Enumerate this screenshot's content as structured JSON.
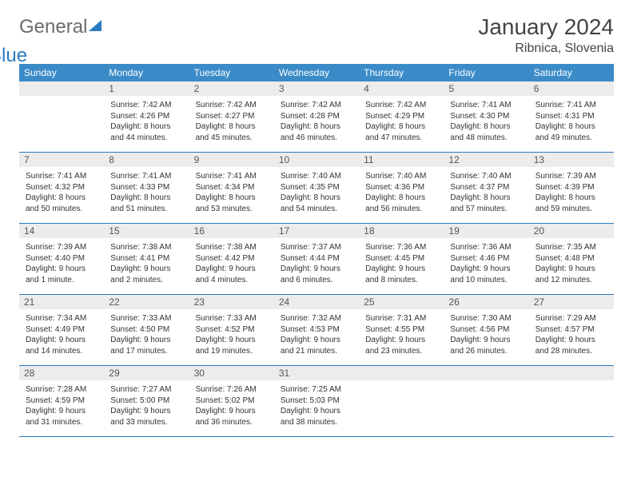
{
  "logo": {
    "part1": "General",
    "part2": "Blue"
  },
  "title": "January 2024",
  "location": "Ribnica, Slovenia",
  "weekdays": [
    "Sunday",
    "Monday",
    "Tuesday",
    "Wednesday",
    "Thursday",
    "Friday",
    "Saturday"
  ],
  "colors": {
    "header_bg": "#3b8bc8",
    "header_text": "#ffffff",
    "daynum_bg": "#ececec",
    "rule": "#2a7abf",
    "logo_gray": "#6b6b6b",
    "logo_blue": "#2a7abf"
  },
  "weeks": [
    [
      {
        "n": "",
        "sunrise": "",
        "sunset": "",
        "daylight": ""
      },
      {
        "n": "1",
        "sunrise": "Sunrise: 7:42 AM",
        "sunset": "Sunset: 4:26 PM",
        "daylight": "Daylight: 8 hours and 44 minutes."
      },
      {
        "n": "2",
        "sunrise": "Sunrise: 7:42 AM",
        "sunset": "Sunset: 4:27 PM",
        "daylight": "Daylight: 8 hours and 45 minutes."
      },
      {
        "n": "3",
        "sunrise": "Sunrise: 7:42 AM",
        "sunset": "Sunset: 4:28 PM",
        "daylight": "Daylight: 8 hours and 46 minutes."
      },
      {
        "n": "4",
        "sunrise": "Sunrise: 7:42 AM",
        "sunset": "Sunset: 4:29 PM",
        "daylight": "Daylight: 8 hours and 47 minutes."
      },
      {
        "n": "5",
        "sunrise": "Sunrise: 7:41 AM",
        "sunset": "Sunset: 4:30 PM",
        "daylight": "Daylight: 8 hours and 48 minutes."
      },
      {
        "n": "6",
        "sunrise": "Sunrise: 7:41 AM",
        "sunset": "Sunset: 4:31 PM",
        "daylight": "Daylight: 8 hours and 49 minutes."
      }
    ],
    [
      {
        "n": "7",
        "sunrise": "Sunrise: 7:41 AM",
        "sunset": "Sunset: 4:32 PM",
        "daylight": "Daylight: 8 hours and 50 minutes."
      },
      {
        "n": "8",
        "sunrise": "Sunrise: 7:41 AM",
        "sunset": "Sunset: 4:33 PM",
        "daylight": "Daylight: 8 hours and 51 minutes."
      },
      {
        "n": "9",
        "sunrise": "Sunrise: 7:41 AM",
        "sunset": "Sunset: 4:34 PM",
        "daylight": "Daylight: 8 hours and 53 minutes."
      },
      {
        "n": "10",
        "sunrise": "Sunrise: 7:40 AM",
        "sunset": "Sunset: 4:35 PM",
        "daylight": "Daylight: 8 hours and 54 minutes."
      },
      {
        "n": "11",
        "sunrise": "Sunrise: 7:40 AM",
        "sunset": "Sunset: 4:36 PM",
        "daylight": "Daylight: 8 hours and 56 minutes."
      },
      {
        "n": "12",
        "sunrise": "Sunrise: 7:40 AM",
        "sunset": "Sunset: 4:37 PM",
        "daylight": "Daylight: 8 hours and 57 minutes."
      },
      {
        "n": "13",
        "sunrise": "Sunrise: 7:39 AM",
        "sunset": "Sunset: 4:39 PM",
        "daylight": "Daylight: 8 hours and 59 minutes."
      }
    ],
    [
      {
        "n": "14",
        "sunrise": "Sunrise: 7:39 AM",
        "sunset": "Sunset: 4:40 PM",
        "daylight": "Daylight: 9 hours and 1 minute."
      },
      {
        "n": "15",
        "sunrise": "Sunrise: 7:38 AM",
        "sunset": "Sunset: 4:41 PM",
        "daylight": "Daylight: 9 hours and 2 minutes."
      },
      {
        "n": "16",
        "sunrise": "Sunrise: 7:38 AM",
        "sunset": "Sunset: 4:42 PM",
        "daylight": "Daylight: 9 hours and 4 minutes."
      },
      {
        "n": "17",
        "sunrise": "Sunrise: 7:37 AM",
        "sunset": "Sunset: 4:44 PM",
        "daylight": "Daylight: 9 hours and 6 minutes."
      },
      {
        "n": "18",
        "sunrise": "Sunrise: 7:36 AM",
        "sunset": "Sunset: 4:45 PM",
        "daylight": "Daylight: 9 hours and 8 minutes."
      },
      {
        "n": "19",
        "sunrise": "Sunrise: 7:36 AM",
        "sunset": "Sunset: 4:46 PM",
        "daylight": "Daylight: 9 hours and 10 minutes."
      },
      {
        "n": "20",
        "sunrise": "Sunrise: 7:35 AM",
        "sunset": "Sunset: 4:48 PM",
        "daylight": "Daylight: 9 hours and 12 minutes."
      }
    ],
    [
      {
        "n": "21",
        "sunrise": "Sunrise: 7:34 AM",
        "sunset": "Sunset: 4:49 PM",
        "daylight": "Daylight: 9 hours and 14 minutes."
      },
      {
        "n": "22",
        "sunrise": "Sunrise: 7:33 AM",
        "sunset": "Sunset: 4:50 PM",
        "daylight": "Daylight: 9 hours and 17 minutes."
      },
      {
        "n": "23",
        "sunrise": "Sunrise: 7:33 AM",
        "sunset": "Sunset: 4:52 PM",
        "daylight": "Daylight: 9 hours and 19 minutes."
      },
      {
        "n": "24",
        "sunrise": "Sunrise: 7:32 AM",
        "sunset": "Sunset: 4:53 PM",
        "daylight": "Daylight: 9 hours and 21 minutes."
      },
      {
        "n": "25",
        "sunrise": "Sunrise: 7:31 AM",
        "sunset": "Sunset: 4:55 PM",
        "daylight": "Daylight: 9 hours and 23 minutes."
      },
      {
        "n": "26",
        "sunrise": "Sunrise: 7:30 AM",
        "sunset": "Sunset: 4:56 PM",
        "daylight": "Daylight: 9 hours and 26 minutes."
      },
      {
        "n": "27",
        "sunrise": "Sunrise: 7:29 AM",
        "sunset": "Sunset: 4:57 PM",
        "daylight": "Daylight: 9 hours and 28 minutes."
      }
    ],
    [
      {
        "n": "28",
        "sunrise": "Sunrise: 7:28 AM",
        "sunset": "Sunset: 4:59 PM",
        "daylight": "Daylight: 9 hours and 31 minutes."
      },
      {
        "n": "29",
        "sunrise": "Sunrise: 7:27 AM",
        "sunset": "Sunset: 5:00 PM",
        "daylight": "Daylight: 9 hours and 33 minutes."
      },
      {
        "n": "30",
        "sunrise": "Sunrise: 7:26 AM",
        "sunset": "Sunset: 5:02 PM",
        "daylight": "Daylight: 9 hours and 36 minutes."
      },
      {
        "n": "31",
        "sunrise": "Sunrise: 7:25 AM",
        "sunset": "Sunset: 5:03 PM",
        "daylight": "Daylight: 9 hours and 38 minutes."
      },
      {
        "n": "",
        "sunrise": "",
        "sunset": "",
        "daylight": ""
      },
      {
        "n": "",
        "sunrise": "",
        "sunset": "",
        "daylight": ""
      },
      {
        "n": "",
        "sunrise": "",
        "sunset": "",
        "daylight": ""
      }
    ]
  ]
}
